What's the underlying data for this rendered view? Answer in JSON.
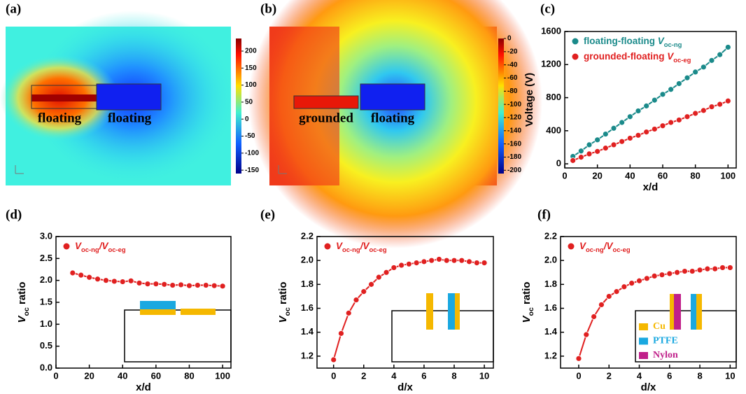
{
  "chart_data": [
    {
      "type": "colormap",
      "title": "(a)",
      "labels": [
        "floating",
        "floating"
      ],
      "clim": [
        -160,
        237
      ],
      "cticks": [
        200,
        150,
        100,
        50,
        0,
        -50,
        -100,
        -150
      ]
    },
    {
      "type": "colormap",
      "title": "(b)",
      "labels": [
        "grounded",
        "floating"
      ],
      "clim": [
        -205,
        0
      ],
      "cticks": [
        0,
        -20,
        -40,
        -60,
        -80,
        -100,
        -120,
        -140,
        -160,
        -180,
        -200
      ]
    },
    {
      "type": "line",
      "title": "(c)",
      "xlabel": "x/d",
      "ylabel": "Voltage (V)",
      "legend": "upper left",
      "x": [
        5,
        10,
        15,
        20,
        25,
        30,
        35,
        40,
        45,
        50,
        55,
        60,
        65,
        70,
        75,
        80,
        85,
        90,
        95,
        100
      ],
      "xlim": [
        0,
        105
      ],
      "xticks": [
        0,
        20,
        40,
        60,
        80,
        100
      ],
      "ylim": [
        -50,
        1600
      ],
      "yticks": [
        0,
        400,
        800,
        1200,
        1600
      ],
      "series": [
        {
          "name": [
            {
              "text": "floating-floating "
            },
            {
              "text": "V",
              "italic": true
            },
            {
              "text": "oc-ng",
              "sub": true
            }
          ],
          "color": "#1a8a8a",
          "values": [
            90,
            155,
            230,
            290,
            360,
            430,
            500,
            570,
            640,
            700,
            770,
            840,
            900,
            970,
            1040,
            1110,
            1170,
            1250,
            1320,
            1410
          ]
        },
        {
          "name": [
            {
              "text": "grounded-floating "
            },
            {
              "text": "V",
              "italic": true
            },
            {
              "text": "oc-eg",
              "sub": true
            }
          ],
          "color": "#e02020",
          "values": [
            40,
            80,
            120,
            150,
            190,
            230,
            270,
            310,
            345,
            385,
            420,
            460,
            500,
            530,
            570,
            610,
            645,
            690,
            720,
            760
          ]
        }
      ]
    },
    {
      "type": "line",
      "title": "(d)",
      "xlabel": "x/d",
      "ylabel": [
        {
          "text": "V",
          "italic": true
        },
        {
          "text": "oc",
          "sub": true
        },
        {
          "text": " ratio"
        }
      ],
      "legend": "upper left",
      "x": [
        10,
        15,
        20,
        25,
        30,
        35,
        40,
        45,
        50,
        55,
        60,
        65,
        70,
        75,
        80,
        85,
        90,
        95,
        100
      ],
      "xlim": [
        0,
        105
      ],
      "xticks": [
        0,
        20,
        40,
        60,
        80,
        100
      ],
      "ylim": [
        0,
        3
      ],
      "yticks": [
        {
          "value": 0,
          "label": "0.0"
        },
        0.5,
        {
          "value": 1,
          "label": "1.0"
        },
        1.5,
        {
          "value": 2,
          "label": "2.0"
        },
        2.5,
        {
          "value": 3,
          "label": "3.0"
        }
      ],
      "series": [
        {
          "name": [
            {
              "text": "V",
              "italic": true
            },
            {
              "text": "oc-ng",
              "sub": true
            },
            {
              "text": "/V",
              "italic": true
            },
            {
              "text": "oc-eg",
              "sub": true
            }
          ],
          "color": "#e02020",
          "values": [
            2.17,
            2.12,
            2.07,
            2.03,
            2.0,
            1.98,
            1.97,
            1.99,
            1.94,
            1.92,
            1.92,
            1.91,
            1.89,
            1.9,
            1.88,
            1.89,
            1.89,
            1.88,
            1.87
          ]
        }
      ]
    },
    {
      "type": "line",
      "title": "(e)",
      "xlabel": "d/x",
      "ylabel": [
        {
          "text": "V",
          "italic": true
        },
        {
          "text": "oc",
          "sub": true
        },
        {
          "text": " ratio"
        }
      ],
      "legend": "upper left",
      "x": [
        0,
        0.5,
        1,
        1.5,
        2,
        2.5,
        3,
        3.5,
        4,
        4.5,
        5,
        5.5,
        6,
        6.5,
        7,
        7.5,
        8,
        8.5,
        9,
        9.5,
        10
      ],
      "xlim": [
        -1.1,
        10.6
      ],
      "xticks": [
        0,
        2,
        4,
        6,
        8,
        10
      ],
      "ylim": [
        1.1,
        2.2
      ],
      "yticks": [
        1.2,
        1.4,
        1.6,
        1.8,
        {
          "value": 2,
          "label": "2.0"
        },
        2.2
      ],
      "series": [
        {
          "name": [
            {
              "text": "V",
              "italic": true
            },
            {
              "text": "oc-ng",
              "sub": true
            },
            {
              "text": "/V",
              "italic": true
            },
            {
              "text": "oc-eg",
              "sub": true
            }
          ],
          "color": "#e02020",
          "values": [
            1.17,
            1.39,
            1.56,
            1.67,
            1.74,
            1.8,
            1.86,
            1.9,
            1.94,
            1.96,
            1.97,
            1.98,
            1.99,
            2.0,
            2.01,
            2.0,
            2.0,
            2.0,
            1.99,
            1.98,
            1.98
          ]
        }
      ]
    },
    {
      "type": "line",
      "title": "(f)",
      "xlabel": "d/x",
      "ylabel": [
        {
          "text": "V",
          "italic": true
        },
        {
          "text": "oc",
          "sub": true
        },
        {
          "text": " ratio"
        }
      ],
      "legend": "upper left",
      "x": [
        0,
        0.5,
        1,
        1.5,
        2,
        2.5,
        3,
        3.5,
        4,
        4.5,
        5,
        5.5,
        6,
        6.5,
        7,
        7.5,
        8,
        8.5,
        9,
        9.5,
        10
      ],
      "xlim": [
        -1.2,
        10.4
      ],
      "xticks": [
        0,
        2,
        4,
        6,
        8,
        10
      ],
      "ylim": [
        1.1,
        2.2
      ],
      "yticks": [
        1.2,
        1.4,
        1.6,
        1.8,
        {
          "value": 2,
          "label": "2.0"
        },
        2.2
      ],
      "series": [
        {
          "name": [
            {
              "text": "V",
              "italic": true
            },
            {
              "text": "oc-ng",
              "sub": true
            },
            {
              "text": "/V",
              "italic": true
            },
            {
              "text": "oc-eg",
              "sub": true
            }
          ],
          "color": "#e02020",
          "values": [
            1.18,
            1.38,
            1.53,
            1.63,
            1.7,
            1.74,
            1.78,
            1.81,
            1.83,
            1.85,
            1.87,
            1.88,
            1.89,
            1.9,
            1.91,
            1.91,
            1.92,
            1.93,
            1.93,
            1.94,
            1.94
          ]
        }
      ],
      "inset_labels": [
        {
          "text": "Cu",
          "color": "#f5b800"
        },
        {
          "text": "PTFE",
          "color": "#1aa8e0"
        },
        {
          "text": "Nylon",
          "color": "#c0208a"
        }
      ]
    }
  ]
}
